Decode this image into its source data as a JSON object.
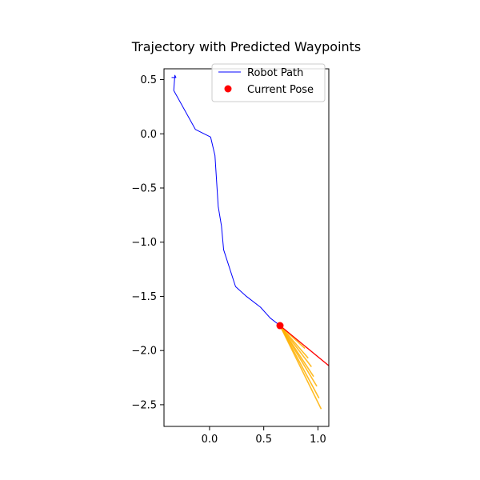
{
  "chart_data": {
    "type": "line",
    "title": "Trajectory with Predicted Waypoints",
    "xlabel": "",
    "ylabel": "",
    "xlim": [
      -0.42,
      1.1
    ],
    "ylim": [
      -2.7,
      0.6
    ],
    "x_ticks": [
      {
        "value": 0.0,
        "label": "0.0"
      },
      {
        "value": 0.5,
        "label": "0.5"
      },
      {
        "value": 1.0,
        "label": "1.0"
      }
    ],
    "y_ticks": [
      {
        "value": 0.5,
        "label": "0.5"
      },
      {
        "value": 0.0,
        "label": "0.0"
      },
      {
        "value": -0.5,
        "label": "−0.5"
      },
      {
        "value": -1.0,
        "label": "−1.0"
      },
      {
        "value": -1.5,
        "label": "−1.5"
      },
      {
        "value": -2.0,
        "label": "−2.0"
      },
      {
        "value": -2.5,
        "label": "−2.5"
      }
    ],
    "grid": false,
    "legend": {
      "placement": "top-right",
      "entries": [
        {
          "label": "Robot Path",
          "marker": "line",
          "color": "#0000ff"
        },
        {
          "label": "Current Pose",
          "marker": "dot",
          "color": "#ff0000"
        }
      ]
    },
    "series": [
      {
        "name": "Robot Path",
        "color": "#0000ff",
        "points": [
          [
            -0.35,
            0.52
          ],
          [
            -0.31,
            0.52
          ],
          [
            -0.32,
            0.54
          ],
          [
            -0.33,
            0.4
          ],
          [
            -0.13,
            0.04
          ],
          [
            0.01,
            -0.03
          ],
          [
            0.05,
            -0.2
          ],
          [
            0.08,
            -0.67
          ],
          [
            0.11,
            -0.85
          ],
          [
            0.13,
            -1.07
          ],
          [
            0.24,
            -1.41
          ],
          [
            0.34,
            -1.5
          ],
          [
            0.47,
            -1.6
          ],
          [
            0.56,
            -1.7
          ],
          [
            0.65,
            -1.77
          ],
          [
            0.66,
            -1.78
          ]
        ]
      }
    ],
    "current_pose": {
      "x": 0.65,
      "y": -1.77,
      "color": "#ff0000"
    },
    "heading": {
      "from": [
        0.65,
        -1.77
      ],
      "to": [
        1.1,
        -2.14
      ],
      "color": "#ff0000"
    },
    "predicted_waypoints": {
      "color": "#ffb000",
      "origin": [
        0.65,
        -1.77
      ],
      "endpoints": [
        [
          0.88,
          -1.98
        ],
        [
          0.91,
          -2.07
        ],
        [
          0.94,
          -2.15
        ],
        [
          0.96,
          -2.24
        ],
        [
          0.99,
          -2.33
        ],
        [
          1.01,
          -2.44
        ],
        [
          1.03,
          -2.54
        ]
      ]
    }
  }
}
